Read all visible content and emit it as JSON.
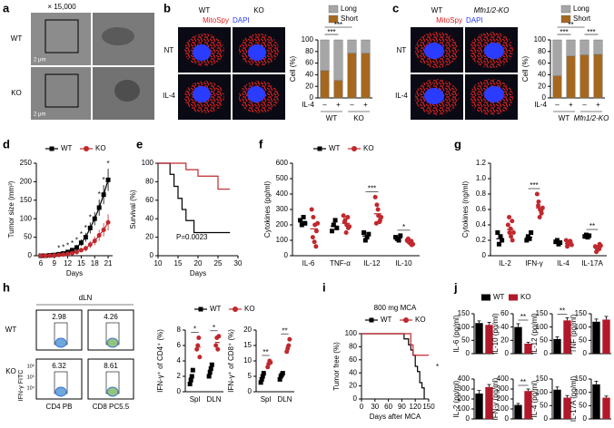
{
  "panels": {
    "a": {
      "letter": "a",
      "magnification": "× 15,000",
      "rows": [
        "WT",
        "KO"
      ],
      "scale_bars": [
        "2 μm",
        "2 μm"
      ]
    },
    "b": {
      "letter": "b",
      "columns": [
        "WT",
        "KO"
      ],
      "stain": [
        "MitoSpy",
        "DAPI"
      ],
      "rows": [
        "NT",
        "IL-4"
      ]
    },
    "c": {
      "letter": "c",
      "columns": [
        "WT",
        "Mfn1/2-KO"
      ],
      "stain": [
        "MitoSpy",
        "DAPI"
      ],
      "rows": [
        "NT",
        "IL-4"
      ]
    },
    "h": {
      "letter": "h",
      "tissue": "dLN",
      "rows": [
        "WT",
        "KO"
      ],
      "percentages": [
        2.98,
        4.26,
        6.32,
        8.61
      ],
      "y_axis": "IFN-γ FITC",
      "x_axes": [
        "CD4 PB",
        "CD8 PC5.5"
      ],
      "y_ticks": [
        "10⁶",
        "10⁵",
        "10⁴"
      ]
    }
  },
  "chart_data": [
    {
      "type": "stacked_bar",
      "y_label": "Cell (%)",
      "ylim": [
        0,
        100
      ],
      "yticks": [
        0,
        20,
        40,
        60,
        80,
        100
      ],
      "categories": [
        "–",
        "+",
        "–",
        "+"
      ],
      "row_label": "IL-4",
      "groups": [
        "WT",
        "KO"
      ],
      "series": [
        {
          "name": "Long",
          "color": "#a6a6a6",
          "values": [
            53,
            70,
            23,
            23
          ]
        },
        {
          "name": "Short",
          "color": "#a6681e",
          "values": [
            47,
            30,
            77,
            77
          ]
        }
      ],
      "significance": [
        "***",
        "***"
      ]
    },
    {
      "type": "stacked_bar",
      "y_label": "Cell (%)",
      "ylim": [
        0,
        100
      ],
      "yticks": [
        0,
        20,
        40,
        60,
        80,
        100
      ],
      "categories": [
        "–",
        "+",
        "–",
        "+"
      ],
      "row_label": "IL-4",
      "groups": [
        "WT",
        "Mfn1/2-KO"
      ],
      "series": [
        {
          "name": "Long",
          "color": "#a6a6a6",
          "values": [
            62,
            28,
            26,
            25
          ]
        },
        {
          "name": "Short",
          "color": "#a6681e",
          "values": [
            38,
            72,
            74,
            75
          ]
        }
      ],
      "significance": [
        "**",
        "***",
        "***"
      ]
    },
    {
      "panel": "d",
      "type": "line",
      "y_label": "Tumor size (mm³)",
      "x_label": "Days",
      "xlim": [
        5,
        22
      ],
      "xticks": [
        6,
        9,
        12,
        15,
        18,
        21
      ],
      "ylim": [
        0,
        250
      ],
      "yticks": [
        0,
        50,
        100,
        150,
        200,
        250
      ],
      "legend": true,
      "x": [
        6,
        7,
        8,
        9,
        10,
        11,
        12,
        13,
        14,
        15,
        16,
        17,
        18,
        19,
        20,
        21
      ],
      "series": [
        {
          "name": "WT",
          "color": "#000000",
          "marker": "square",
          "values": [
            0,
            0,
            1,
            2,
            4,
            6,
            10,
            15,
            22,
            35,
            50,
            75,
            100,
            130,
            165,
            205
          ],
          "errors": [
            0,
            0,
            1,
            1,
            2,
            3,
            4,
            5,
            7,
            9,
            12,
            15,
            18,
            22,
            26,
            30
          ]
        },
        {
          "name": "KO",
          "color": "#c0282d",
          "marker": "circle",
          "values": [
            0,
            0,
            0,
            1,
            2,
            3,
            5,
            7,
            10,
            15,
            20,
            30,
            40,
            55,
            70,
            90
          ],
          "errors": [
            0,
            0,
            0,
            1,
            1,
            2,
            3,
            4,
            5,
            6,
            8,
            10,
            12,
            15,
            18,
            22
          ]
        }
      ],
      "annotations": [
        {
          "x": 10,
          "text": "*"
        },
        {
          "x": 11,
          "text": "*"
        },
        {
          "x": 12,
          "text": "*"
        },
        {
          "x": 13,
          "text": "*"
        },
        {
          "x": 14,
          "text": "*"
        },
        {
          "x": 15,
          "text": "*"
        },
        {
          "x": 16,
          "text": "*"
        },
        {
          "x": 17,
          "text": "*"
        },
        {
          "x": 19,
          "text": "*"
        },
        {
          "x": 20,
          "text": "*"
        },
        {
          "x": 21,
          "text": "*"
        }
      ]
    },
    {
      "panel": "e",
      "type": "survival",
      "y_label": "Survival (%)",
      "x_label": "Days",
      "xlim": [
        10,
        30
      ],
      "xticks": [
        10,
        15,
        20,
        25,
        30
      ],
      "ylim": [
        0,
        100
      ],
      "yticks": [
        0,
        20,
        40,
        60,
        80,
        100
      ],
      "series": [
        {
          "color": "#000000",
          "x": [
            10,
            13,
            14,
            15,
            16,
            17,
            19,
            28
          ],
          "values": [
            100,
            88,
            75,
            62,
            50,
            38,
            25,
            25
          ]
        },
        {
          "color": "#c0282d",
          "x": [
            10,
            17,
            20,
            25,
            28
          ],
          "values": [
            100,
            93,
            86,
            72,
            72
          ]
        }
      ],
      "annotation": "P=0.0023"
    },
    {
      "panel": "f",
      "type": "dot",
      "y_label": "Cytokines (pg/ml)",
      "ylim": [
        0,
        600
      ],
      "yticks": [
        0,
        100,
        200,
        300,
        400,
        500,
        600
      ],
      "legend": true,
      "categories": [
        "IL-6",
        "TNF-α",
        "IL-12",
        "IL-10"
      ],
      "series": [
        {
          "name": "WT",
          "color": "#000000",
          "marker": "square",
          "values": [
            [
              230,
              200,
              250,
              210
            ],
            [
              160,
              200,
              230,
              180
            ],
            [
              150,
              100,
              120,
              140
            ],
            [
              120,
              110,
              100,
              130
            ]
          ],
          "means": [
            222,
            192,
            128,
            115
          ]
        },
        {
          "name": "KO",
          "color": "#c0282d",
          "marker": "circle",
          "values": [
            [
              300,
              250,
              200,
              160,
              120,
              90,
              60,
              210
            ],
            [
              260,
              230,
              200,
              180,
              220,
              150,
              250,
              190
            ],
            [
              380,
              330,
              260,
              230,
              210,
              300,
              220,
              250
            ],
            [
              100,
              90,
              80,
              70,
              110,
              85,
              95,
              75
            ]
          ],
          "means": [
            174,
            210,
            272,
            88
          ]
        }
      ],
      "significance": [
        "***",
        "*"
      ]
    },
    {
      "panel": "g",
      "type": "dot",
      "y_label": "Cytokines (ng/ml)",
      "ylim": [
        0,
        1.2
      ],
      "yticks": [
        0,
        0.2,
        0.4,
        0.6,
        0.8,
        {
          "value": 1,
          "label": "1.0"
        },
        1.2
      ],
      "categories": [
        "IL-2",
        "IFN-γ",
        "IL-4",
        "IL-17A"
      ],
      "series": [
        {
          "color": "#000000",
          "marker": "square",
          "values": [
            [
              0.3,
              0.15,
              0.25,
              0.2
            ],
            [
              0.2,
              0.25,
              0.22,
              0.3
            ],
            [
              0.18,
              0.2,
              0.15,
              0.17
            ],
            [
              0.25,
              0.27,
              0.24,
              0.26
            ]
          ],
          "means": [
            0.22,
            0.24,
            0.17,
            0.25
          ]
        },
        {
          "color": "#c0282d",
          "marker": "circle",
          "values": [
            [
              0.4,
              0.3,
              0.25,
              0.2,
              0.5,
              0.35,
              0.45,
              0.3
            ],
            [
              0.8,
              0.7,
              0.6,
              0.55,
              0.65,
              0.5,
              0.58,
              0.62
            ],
            [
              0.2,
              0.15,
              0.18,
              0.17,
              0.12,
              0.16,
              0.19,
              0.14
            ],
            [
              0.12,
              0.1,
              0.08,
              0.15,
              0.05,
              0.11,
              0.09,
              0.13
            ]
          ],
          "means": [
            0.34,
            0.62,
            0.16,
            0.1
          ]
        }
      ],
      "significance": [
        "***",
        "**"
      ]
    },
    {
      "type": "dot",
      "y_label": "IFN-γ⁺ of CD4⁺ (%)",
      "ylim": [
        0,
        8
      ],
      "yticks": [
        0,
        2,
        4,
        6,
        8
      ],
      "legend": true,
      "categories": [
        "Spl",
        "DLN"
      ],
      "series": [
        {
          "name": "WT",
          "color": "#000000",
          "marker": "square",
          "values": [
            [
              1,
              1.5,
              2,
              2.8
            ],
            [
              2,
              2.5,
              3,
              3.5
            ]
          ],
          "means": [
            1.8,
            2.8
          ]
        },
        {
          "name": "KO",
          "color": "#c0282d",
          "marker": "circle",
          "values": [
            [
              5.5,
              6,
              7,
              4.5
            ],
            [
              6,
              7,
              5.5,
              7.2
            ]
          ],
          "means": [
            5.8,
            6.4
          ]
        }
      ],
      "significance": [
        "*",
        "*"
      ]
    },
    {
      "type": "dot",
      "y_label": "IFN-γ⁺ of CD8⁺ (%)",
      "ylim": [
        0,
        20
      ],
      "yticks": [
        0,
        5,
        10,
        15,
        20
      ],
      "categories": [
        "Spl",
        "DLN"
      ],
      "series": [
        {
          "color": "#000000",
          "marker": "square",
          "values": [
            [
              3,
              4,
              5,
              6
            ],
            [
              4,
              5,
              5.5,
              6
            ]
          ],
          "means": [
            4.5,
            5.1
          ]
        },
        {
          "color": "#c0282d",
          "marker": "circle",
          "values": [
            [
              8,
              9,
              10,
              9.5
            ],
            [
              13,
              14,
              15,
              17
            ]
          ],
          "means": [
            9.1,
            14.8
          ]
        }
      ],
      "significance": [
        "**",
        "**"
      ]
    },
    {
      "panel": "i",
      "type": "survival",
      "title": "800 mg MCA",
      "y_label": "Tumor free (%)",
      "x_label": "Days after MCA",
      "xlim": [
        0,
        150
      ],
      "xticks": [
        0,
        30,
        60,
        90,
        120,
        150
      ],
      "ylim": [
        0,
        100
      ],
      "yticks": [
        0,
        20,
        40,
        60,
        80,
        100
      ],
      "legend": true,
      "series": [
        {
          "name": "WT",
          "color": "#000000",
          "marker": "square",
          "x": [
            0,
            95,
            105,
            110,
            115,
            120,
            125,
            130,
            135,
            140
          ],
          "values": [
            100,
            92,
            83,
            75,
            67,
            50,
            42,
            25,
            17,
            0
          ]
        },
        {
          "name": "KO",
          "color": "#c0282d",
          "marker": "circle",
          "x": [
            0,
            110,
            115,
            150
          ],
          "values": [
            100,
            83,
            67,
            67
          ]
        }
      ],
      "annotation": "*"
    },
    {
      "panel": "j",
      "type": "bar",
      "y_label": "IL-6 (pg/ml)",
      "ylim": [
        0,
        150
      ],
      "yticks": [
        0,
        50,
        100,
        150
      ],
      "legend": true,
      "series": [
        {
          "name": "WT",
          "color": "#000000",
          "values": [
            115
          ],
          "errors": [
            8
          ]
        },
        {
          "name": "KO",
          "color": "#b2182b",
          "values": [
            108
          ],
          "errors": [
            10
          ]
        }
      ]
    },
    {
      "type": "bar",
      "y_label": "IL-10 (pg/ml)",
      "ylim": [
        0,
        60
      ],
      "yticks": [
        0,
        20,
        40,
        60
      ],
      "series": [
        {
          "color": "#000000",
          "values": [
            40
          ],
          "errors": [
            5
          ]
        },
        {
          "color": "#b2182b",
          "values": [
            15
          ],
          "errors": [
            2
          ]
        }
      ],
      "significance": [
        "**"
      ]
    },
    {
      "type": "bar",
      "y_label": "IL-12 (pg/ml)",
      "ylim": [
        0,
        150
      ],
      "yticks": [
        0,
        50,
        100,
        150
      ],
      "series": [
        {
          "color": "#000000",
          "values": [
            55
          ],
          "errors": [
            8
          ]
        },
        {
          "color": "#b2182b",
          "values": [
            125
          ],
          "errors": [
            10
          ]
        }
      ],
      "significance": [
        "**"
      ]
    },
    {
      "type": "bar",
      "y_label": "TNF (pg/ml)",
      "ylim": [
        0,
        150
      ],
      "yticks": [
        0,
        50,
        100,
        150
      ],
      "series": [
        {
          "color": "#000000",
          "values": [
            120
          ],
          "errors": [
            10
          ]
        },
        {
          "color": "#b2182b",
          "values": [
            128
          ],
          "errors": [
            12
          ]
        }
      ]
    },
    {
      "type": "bar",
      "y_label": "IL-2 (pg/ml)",
      "ylim": [
        0,
        400
      ],
      "yticks": [
        0,
        100,
        200,
        300,
        400
      ],
      "series": [
        {
          "color": "#000000",
          "values": [
            255
          ],
          "errors": [
            30
          ]
        },
        {
          "color": "#b2182b",
          "values": [
            320
          ],
          "errors": [
            25
          ]
        }
      ]
    },
    {
      "type": "bar",
      "y_label": "IFN-γ (pg/ml)",
      "ylim": [
        0,
        400
      ],
      "yticks": [
        0,
        100,
        200,
        300,
        400
      ],
      "series": [
        {
          "color": "#000000",
          "values": [
            140
          ],
          "errors": [
            15
          ]
        },
        {
          "color": "#b2182b",
          "values": [
            280
          ],
          "errors": [
            20
          ]
        }
      ],
      "significance": [
        "**"
      ]
    },
    {
      "type": "bar",
      "y_label": "IL-4 (pg/ml)",
      "ylim": [
        0,
        150
      ],
      "yticks": [
        0,
        50,
        100,
        150
      ],
      "series": [
        {
          "color": "#000000",
          "values": [
            110
          ],
          "errors": [
            10
          ]
        },
        {
          "color": "#b2182b",
          "values": [
            80
          ],
          "errors": [
            8
          ]
        }
      ]
    },
    {
      "type": "bar",
      "y_label": "IL-17A (pg/ml)",
      "ylim": [
        0,
        150
      ],
      "yticks": [
        0,
        50,
        100,
        150
      ],
      "series": [
        {
          "color": "#000000",
          "values": [
            130
          ],
          "errors": [
            12
          ]
        },
        {
          "color": "#b2182b",
          "values": [
            80
          ],
          "errors": [
            6
          ]
        }
      ]
    }
  ]
}
